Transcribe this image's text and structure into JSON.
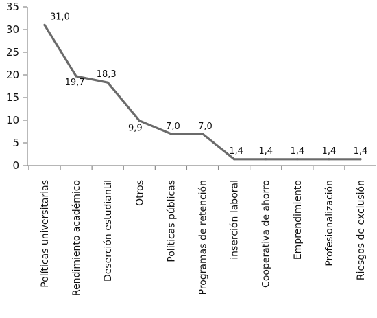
{
  "chart_data": {
    "type": "line",
    "categories": [
      "Políticas universitarias",
      "Rendimiento académico",
      "Deserción estudiantil",
      "Otros",
      "Políticas públicas",
      "Programas de retención",
      "inserción laboral",
      "Cooperativa de ahorro",
      "Emprendimiento",
      "Profesionalización",
      "Riesgos de exclusión"
    ],
    "series": [
      {
        "values": [
          31.0,
          19.7,
          18.3,
          9.9,
          7.0,
          7.0,
          1.4,
          1.4,
          1.4,
          1.4,
          1.4
        ]
      }
    ],
    "data_labels": [
      "31,0",
      "19,7",
      "18,3",
      "9,9",
      "7,0",
      "7,0",
      "1,4",
      "1,4",
      "1,4",
      "1,4",
      "1,4"
    ],
    "y_ticks": [
      0,
      5,
      10,
      15,
      20,
      25,
      30,
      35
    ],
    "y_tick_labels": [
      "0",
      "5",
      "10",
      "15",
      "20",
      "25",
      "30",
      "35"
    ],
    "ylim": [
      0,
      35
    ],
    "grid": false,
    "line_color": "#6b6b6b",
    "axis_color": "#8a8a8a"
  }
}
